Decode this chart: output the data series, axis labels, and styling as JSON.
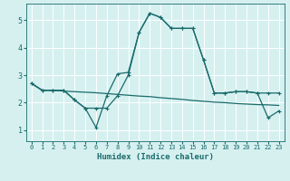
{
  "title": "",
  "xlabel": "Humidex (Indice chaleur)",
  "bg_color": "#d6f0f0",
  "line_color": "#1a6b6b",
  "grid_color": "#ffffff",
  "xlim": [
    -0.5,
    23.5
  ],
  "ylim": [
    0.6,
    5.6
  ],
  "xticks": [
    0,
    1,
    2,
    3,
    4,
    5,
    6,
    7,
    8,
    9,
    10,
    11,
    12,
    13,
    14,
    15,
    16,
    17,
    18,
    19,
    20,
    21,
    22,
    23
  ],
  "yticks": [
    1,
    2,
    3,
    4,
    5
  ],
  "series1_x": [
    0,
    1,
    2,
    3,
    4,
    5,
    6,
    7,
    8,
    9,
    10,
    11,
    12,
    13,
    14,
    15,
    16,
    17,
    18,
    19,
    20,
    21,
    22,
    23
  ],
  "series1_y": [
    2.7,
    2.45,
    2.45,
    2.42,
    2.4,
    2.38,
    2.36,
    2.33,
    2.3,
    2.27,
    2.24,
    2.22,
    2.18,
    2.15,
    2.12,
    2.08,
    2.05,
    2.02,
    2.0,
    1.97,
    1.95,
    1.93,
    1.92,
    1.9
  ],
  "series2_x": [
    0,
    1,
    2,
    3,
    4,
    5,
    6,
    7,
    8,
    9,
    10,
    11,
    12,
    13,
    14,
    15,
    16,
    17,
    18,
    19,
    20,
    21,
    22,
    23
  ],
  "series2_y": [
    2.7,
    2.45,
    2.45,
    2.45,
    2.1,
    1.8,
    1.8,
    1.8,
    2.25,
    3.0,
    4.55,
    5.25,
    5.1,
    4.7,
    4.7,
    4.7,
    3.55,
    2.35,
    2.35,
    2.4,
    2.4,
    2.35,
    2.35,
    2.35
  ],
  "series3_x": [
    0,
    1,
    2,
    3,
    4,
    5,
    6,
    7,
    8,
    9,
    10,
    11,
    12,
    13,
    14,
    15,
    16,
    17,
    18,
    19,
    20,
    21,
    22,
    23
  ],
  "series3_y": [
    2.7,
    2.45,
    2.45,
    2.45,
    2.1,
    1.8,
    1.1,
    2.25,
    3.05,
    3.1,
    4.55,
    5.25,
    5.1,
    4.7,
    4.7,
    4.7,
    3.55,
    2.35,
    2.35,
    2.4,
    2.4,
    2.35,
    1.45,
    1.7
  ]
}
